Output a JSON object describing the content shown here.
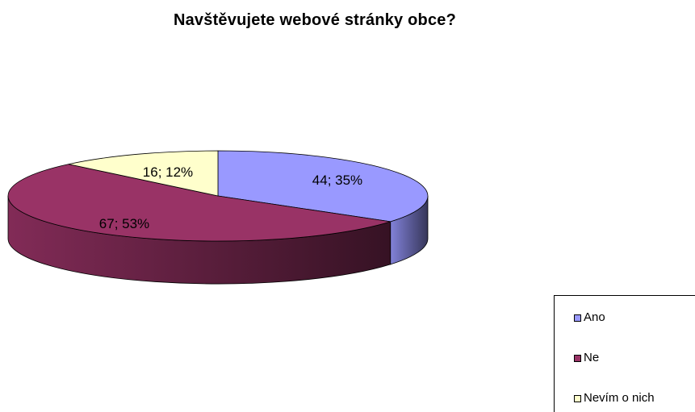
{
  "chart_data": {
    "type": "pie",
    "title": "Navštěvujete webové stránky obce?",
    "slices": [
      {
        "label": "Ano",
        "value": 44,
        "percent": 35,
        "data_label": "44; 35%",
        "color": "#9999ff"
      },
      {
        "label": "Ne",
        "value": 67,
        "percent": 53,
        "data_label": "67; 53%",
        "color": "#993366"
      },
      {
        "label": "Nevím o nich",
        "value": 16,
        "percent": 12,
        "data_label": "16; 12%",
        "color": "#ffffcc"
      }
    ],
    "style": "3d",
    "legend": "bottom-right"
  }
}
